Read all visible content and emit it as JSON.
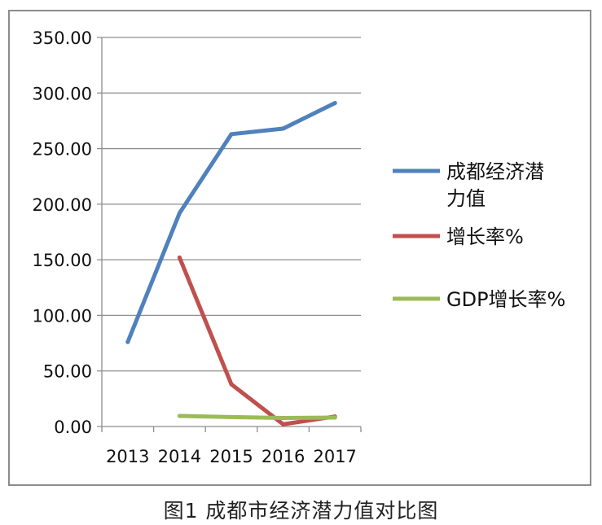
{
  "chart_data": {
    "type": "line",
    "categories": [
      "2013",
      "2014",
      "2015",
      "2016",
      "2017"
    ],
    "series": [
      {
        "name": "成都经济潜力值",
        "color": "#4F81BD",
        "values": [
          76,
          192,
          263,
          268,
          291
        ]
      },
      {
        "name": "增长率%",
        "color": "#C0504D",
        "values": [
          null,
          152,
          38,
          2,
          9
        ]
      },
      {
        "name": "GDP增长率%",
        "color": "#9BBB59",
        "values": [
          null,
          9.5,
          8.5,
          7.7,
          8.1
        ]
      }
    ],
    "ylim": [
      0,
      350
    ],
    "yticks": [
      "0.00",
      "50.00",
      "100.00",
      "150.00",
      "200.00",
      "250.00",
      "300.00",
      "350.00"
    ],
    "grid": true,
    "legend_position": "right"
  },
  "caption": "图1  成都市经济潜力值对比图"
}
